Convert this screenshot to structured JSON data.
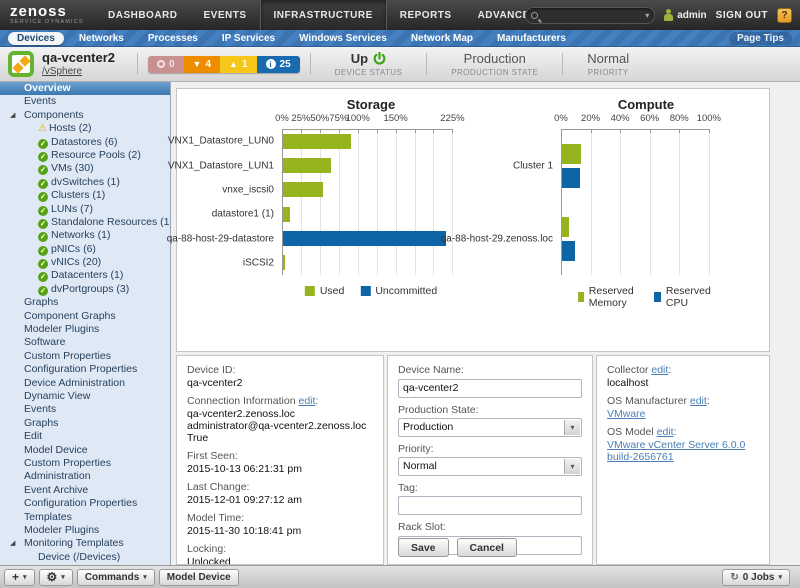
{
  "topnav": {
    "logo": "zenoss",
    "logo_tagline": "SERVICE DYNAMICS",
    "items": [
      {
        "label": "DASHBOARD",
        "active": false
      },
      {
        "label": "EVENTS",
        "active": false
      },
      {
        "label": "INFRASTRUCTURE",
        "active": true
      },
      {
        "label": "REPORTS",
        "active": false
      },
      {
        "label": "ADVANCED",
        "active": false
      }
    ],
    "user": "admin",
    "sign_out": "SIGN OUT",
    "help": "?"
  },
  "subnav": {
    "items": [
      {
        "label": "Devices",
        "active": true
      },
      {
        "label": "Networks",
        "active": false
      },
      {
        "label": "Processes",
        "active": false
      },
      {
        "label": "IP Services",
        "active": false
      },
      {
        "label": "Windows Services",
        "active": false
      },
      {
        "label": "Network Map",
        "active": false
      },
      {
        "label": "Manufacturers",
        "active": false
      }
    ],
    "page_tips": "Page Tips"
  },
  "device_header": {
    "title": "qa-vcenter2",
    "device_class": "/vSphere",
    "badges": [
      {
        "count": "0",
        "type": "critical"
      },
      {
        "count": "4",
        "type": "error"
      },
      {
        "count": "1",
        "type": "warning"
      },
      {
        "count": "25",
        "type": "info"
      }
    ],
    "stats": [
      {
        "value": "Up",
        "label": "DEVICE STATUS"
      },
      {
        "value": "Production",
        "label": "PRODUCTION STATE"
      },
      {
        "value": "Normal",
        "label": "PRIORITY"
      }
    ]
  },
  "sidebar": {
    "items": [
      {
        "label": "Overview",
        "indent": 0,
        "selected": true
      },
      {
        "label": "Events",
        "indent": 0
      },
      {
        "label": "Components",
        "indent": 0,
        "expander": true
      },
      {
        "label": "Hosts (2)",
        "indent": 1,
        "icon": "warning"
      },
      {
        "label": "Datastores (6)",
        "indent": 1,
        "icon": "ok"
      },
      {
        "label": "Resource Pools (2)",
        "indent": 1,
        "icon": "ok"
      },
      {
        "label": "VMs (30)",
        "indent": 1,
        "icon": "ok"
      },
      {
        "label": "dvSwitches (1)",
        "indent": 1,
        "icon": "ok"
      },
      {
        "label": "Clusters (1)",
        "indent": 1,
        "icon": "ok"
      },
      {
        "label": "LUNs (7)",
        "indent": 1,
        "icon": "ok"
      },
      {
        "label": "Standalone Resources (1)",
        "indent": 1,
        "icon": "ok"
      },
      {
        "label": "Networks (1)",
        "indent": 1,
        "icon": "ok"
      },
      {
        "label": "pNICs (6)",
        "indent": 1,
        "icon": "ok"
      },
      {
        "label": "vNICs (20)",
        "indent": 1,
        "icon": "ok"
      },
      {
        "label": "Datacenters (1)",
        "indent": 1,
        "icon": "ok"
      },
      {
        "label": "dvPortgroups (3)",
        "indent": 1,
        "icon": "ok"
      },
      {
        "label": "Graphs",
        "indent": 0
      },
      {
        "label": "Component Graphs",
        "indent": 0
      },
      {
        "label": "Modeler Plugins",
        "indent": 0
      },
      {
        "label": "Software",
        "indent": 0
      },
      {
        "label": "Custom Properties",
        "indent": 0
      },
      {
        "label": "Configuration Properties",
        "indent": 0
      },
      {
        "label": "Device Administration",
        "indent": 0
      },
      {
        "label": "Dynamic View",
        "indent": 0
      },
      {
        "label": "Events",
        "indent": 0
      },
      {
        "label": "Graphs",
        "indent": 0
      },
      {
        "label": "Edit",
        "indent": 0
      },
      {
        "label": "Model Device",
        "indent": 0
      },
      {
        "label": "Custom Properties",
        "indent": 0
      },
      {
        "label": "Administration",
        "indent": 0
      },
      {
        "label": "Event Archive",
        "indent": 0
      },
      {
        "label": "Configuration Properties",
        "indent": 0
      },
      {
        "label": "Templates",
        "indent": 0
      },
      {
        "label": "Modeler Plugins",
        "indent": 0
      },
      {
        "label": "Monitoring Templates",
        "indent": 0,
        "expander": true
      },
      {
        "label": "Device (/Devices)",
        "indent": 1
      }
    ]
  },
  "chart_data": [
    {
      "type": "bar",
      "orientation": "horizontal",
      "title": "Storage",
      "unit": "%",
      "categories": [
        "VNX1_Datastore_LUN0",
        "VNX1_Datastore_LUN1",
        "vnxe_iscsi0",
        "datastore1 (1)",
        "qa-88-host-29-datastore",
        "iSCSI2"
      ],
      "series": [
        {
          "name": "Used",
          "color": "#96b41d",
          "values": [
            90,
            63,
            53,
            9,
            0,
            1
          ]
        },
        {
          "name": "Uncommitted",
          "color": "#0e65a5",
          "values": [
            0,
            0,
            0,
            0,
            215,
            0
          ]
        }
      ],
      "xlim": [
        0,
        235
      ],
      "tick_step": 25,
      "labeled_ticks": [
        0,
        25,
        50,
        75,
        100,
        150,
        225
      ],
      "legend_position": "bottom"
    },
    {
      "type": "bar",
      "orientation": "horizontal",
      "title": "Compute",
      "unit": "%",
      "categories": [
        "Cluster 1",
        "qa-88-host-29.zenoss.loc"
      ],
      "series": [
        {
          "name": "Reserved Memory",
          "color": "#96b41d",
          "values": [
            13,
            5
          ]
        },
        {
          "name": "Reserved CPU",
          "color": "#0e65a5",
          "values": [
            12,
            9
          ]
        }
      ],
      "xlim": [
        0,
        115
      ],
      "tick_step": 20,
      "labeled_ticks": [
        0,
        20,
        40,
        60,
        80,
        100
      ],
      "legend_position": "bottom"
    }
  ],
  "overview": {
    "details": [
      {
        "label": "Device ID:",
        "value": "qa-vcenter2"
      },
      {
        "label": "Connection Information",
        "edit": "edit",
        "value": "qa-vcenter2.zenoss.loc administrator@qa-vcenter2.zenoss.loc True"
      },
      {
        "label": "First Seen:",
        "value": "2015-10-13 06:21:31 pm"
      },
      {
        "label": "Last Change:",
        "value": "2015-12-01 09:27:12 am"
      },
      {
        "label": "Model Time:",
        "value": "2015-11-30 10:18:41 pm"
      },
      {
        "label": "Locking:",
        "value": "Unlocked"
      }
    ],
    "form": {
      "device_name": {
        "label": "Device Name:",
        "value": "qa-vcenter2"
      },
      "production_state": {
        "label": "Production State:",
        "value": "Production"
      },
      "priority": {
        "label": "Priority:",
        "value": "Normal"
      },
      "tag": {
        "label": "Tag:",
        "value": ""
      },
      "rack_slot": {
        "label": "Rack Slot:",
        "value": ""
      },
      "save": "Save",
      "cancel": "Cancel"
    },
    "system": [
      {
        "label": "Collector",
        "edit": "edit",
        "value": "localhost",
        "link": false
      },
      {
        "label": "OS Manufacturer",
        "edit": "edit",
        "value": "VMware",
        "link": true
      },
      {
        "label": "OS Model",
        "edit": "edit",
        "value": "VMware vCenter Server 6.0.0 build-2656761",
        "link": true
      }
    ]
  },
  "footer": {
    "add": "+",
    "commands": "Commands",
    "model_device": "Model Device",
    "jobs": "0 Jobs"
  },
  "icons": {
    "dropdown": "▾",
    "gear": "⚙",
    "jobs_refresh": "↻",
    "expander": "◢",
    "check": "✓",
    "warning": "⚠",
    "error_arrow": "▼",
    "warning_triangle": "▲"
  },
  "colors": {
    "used_green": "#96b41d",
    "uncommitted_blue": "#0e65a5",
    "critical": "#c99090",
    "error": "#ef8d01",
    "warning": "#f6c61a",
    "info": "#1a6ab0",
    "status_up_green": "#3aa30a"
  }
}
